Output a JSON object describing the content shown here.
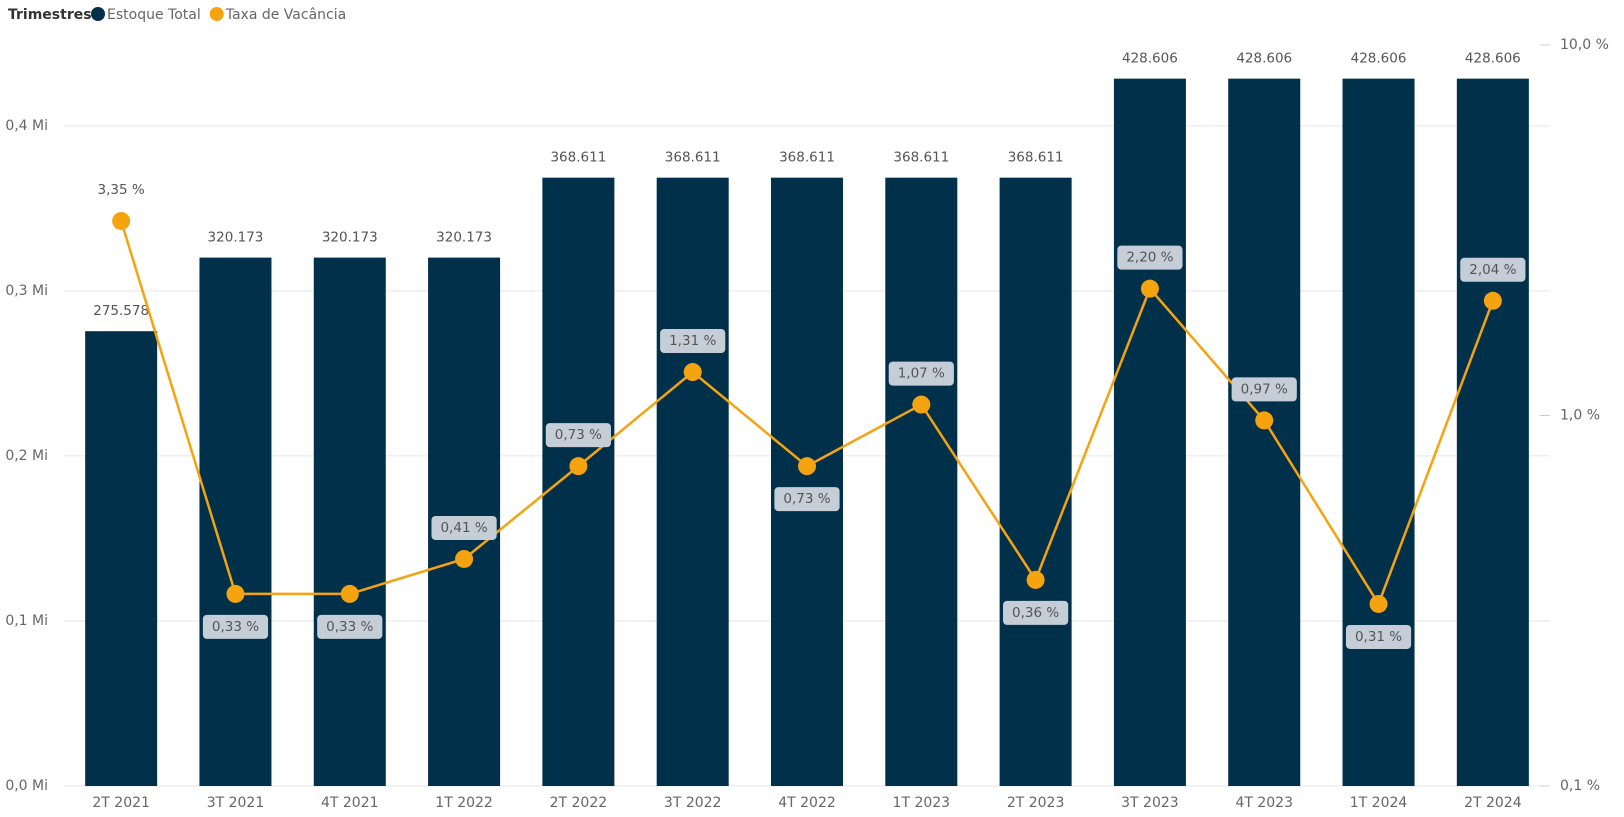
{
  "chart_data": {
    "type": "bar-line",
    "legend_title": "Trimestres",
    "legend": "top-left",
    "grid": true,
    "categories": [
      "2T 2021",
      "3T 2021",
      "4T 2021",
      "1T 2022",
      "2T 2022",
      "3T 2022",
      "4T 2022",
      "1T 2023",
      "2T 2023",
      "3T 2023",
      "4T 2023",
      "1T 2024",
      "2T 2024"
    ],
    "ylim": [
      0,
      0.449
    ],
    "yticks": [
      {
        "value": 0,
        "label": "0,0 Mi"
      },
      {
        "value": 0.1,
        "label": "0,1 Mi"
      },
      {
        "value": 0.2,
        "label": "0,2 Mi"
      },
      {
        "value": 0.3,
        "label": "0,3 Mi"
      },
      {
        "value": 0.4,
        "label": "0,4 Mi"
      }
    ],
    "y2lim": [
      0.1,
      10
    ],
    "y2log": true,
    "y2ticks": [
      {
        "value": 0.1,
        "label": "0,1 %"
      },
      {
        "value": 1,
        "label": "1,0 %"
      },
      {
        "value": 10,
        "label": "10,0 %"
      }
    ],
    "series": [
      {
        "name": "Estoque Total",
        "type": "bar",
        "color": "#00304a",
        "values": [
          0.275578,
          0.320173,
          0.320173,
          0.320173,
          0.368611,
          0.368611,
          0.368611,
          0.368611,
          0.368611,
          0.428606,
          0.428606,
          0.428606,
          0.428606
        ],
        "value_labels": [
          "275.578",
          "320.173",
          "320.173",
          "320.173",
          "368.611",
          "368.611",
          "368.611",
          "368.611",
          "368.611",
          "428.606",
          "428.606",
          "428.606",
          "428.606"
        ]
      },
      {
        "name": "Taxa de Vacância",
        "type": "line",
        "axis": "y2",
        "color": "#f5a30f",
        "values": [
          3.35,
          0.33,
          0.33,
          0.41,
          0.73,
          1.31,
          0.73,
          1.07,
          0.36,
          2.2,
          0.97,
          0.31,
          2.04
        ],
        "value_labels": [
          "3,35 %",
          "0,33 %",
          "0,33 %",
          "0,41 %",
          "0,73 %",
          "1,31 %",
          "0,73 %",
          "1,07 %",
          "0,36 %",
          "2,20 %",
          "0,97 %",
          "0,31 %",
          "2,04 %"
        ]
      }
    ]
  }
}
